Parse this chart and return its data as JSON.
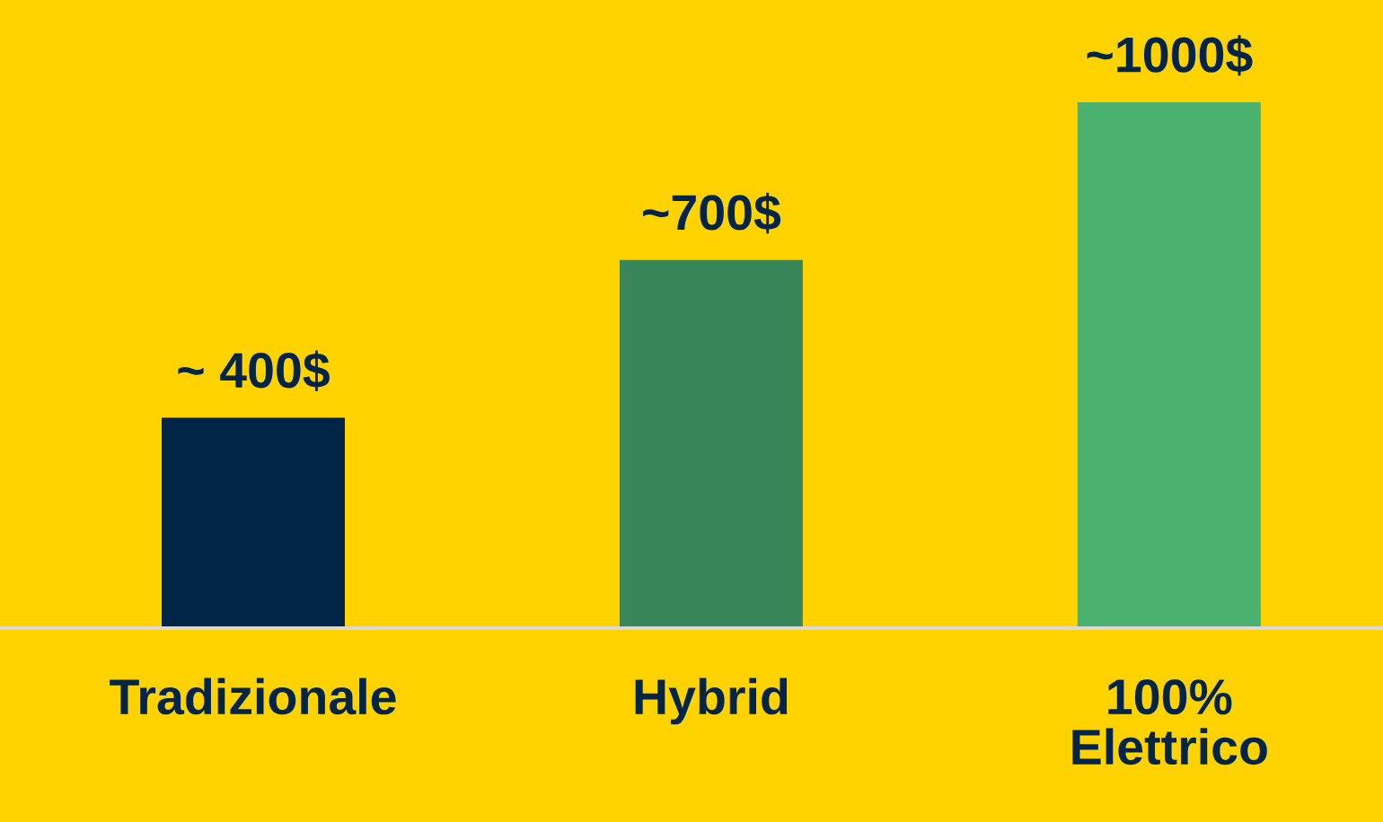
{
  "chart_data": {
    "type": "bar",
    "categories": [
      "Tradizionale",
      "Hybrid",
      "100%\nElettrico"
    ],
    "values": [
      400,
      700,
      1000
    ],
    "value_labels": [
      "~ 400$",
      "~700$",
      "~1000$"
    ],
    "colors": [
      "#012547",
      "#38865a",
      "#4ab26e"
    ],
    "grid": false,
    "legend": false
  }
}
